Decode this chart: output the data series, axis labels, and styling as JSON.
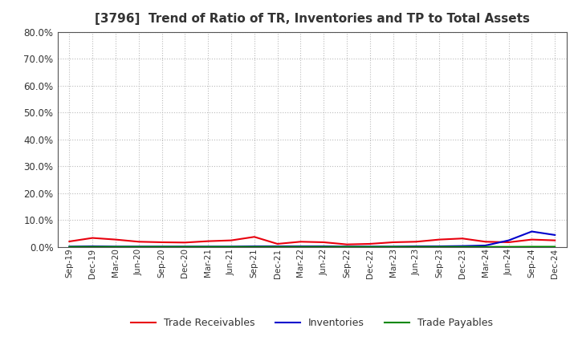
{
  "title": "[3796]  Trend of Ratio of TR, Inventories and TP to Total Assets",
  "x_labels": [
    "Sep-19",
    "Dec-19",
    "Mar-20",
    "Jun-20",
    "Sep-20",
    "Dec-20",
    "Mar-21",
    "Jun-21",
    "Sep-21",
    "Dec-21",
    "Mar-22",
    "Jun-22",
    "Sep-22",
    "Dec-22",
    "Mar-23",
    "Jun-23",
    "Sep-23",
    "Dec-23",
    "Mar-24",
    "Jun-24",
    "Sep-24",
    "Dec-24"
  ],
  "trade_receivables": [
    2.1,
    3.4,
    2.8,
    2.0,
    1.8,
    1.7,
    2.2,
    2.5,
    3.8,
    1.2,
    2.0,
    1.8,
    1.0,
    1.2,
    1.8,
    2.0,
    2.8,
    3.2,
    2.0,
    1.8,
    2.8,
    2.5
  ],
  "inventories": [
    0.2,
    0.3,
    0.2,
    0.2,
    0.2,
    0.2,
    0.2,
    0.2,
    0.3,
    0.3,
    0.3,
    0.3,
    0.2,
    0.2,
    0.2,
    0.3,
    0.3,
    0.4,
    0.6,
    2.5,
    5.8,
    4.5
  ],
  "trade_payables": [
    0.1,
    0.1,
    0.1,
    0.1,
    0.1,
    0.1,
    0.1,
    0.1,
    0.1,
    0.1,
    0.1,
    0.1,
    0.1,
    0.1,
    0.1,
    0.1,
    0.1,
    0.1,
    0.1,
    0.1,
    0.15,
    0.15
  ],
  "color_tr": "#e8000d",
  "color_inv": "#0000cc",
  "color_tp": "#008800",
  "ylim_min": 0,
  "ylim_max": 80,
  "yticks": [
    0,
    10,
    20,
    30,
    40,
    50,
    60,
    70,
    80
  ],
  "background_color": "#ffffff",
  "plot_bg_color": "#ffffff",
  "grid_color": "#bbbbbb",
  "title_color": "#333333",
  "tick_color": "#333333",
  "legend_labels": [
    "Trade Receivables",
    "Inventories",
    "Trade Payables"
  ],
  "spine_color": "#555555"
}
